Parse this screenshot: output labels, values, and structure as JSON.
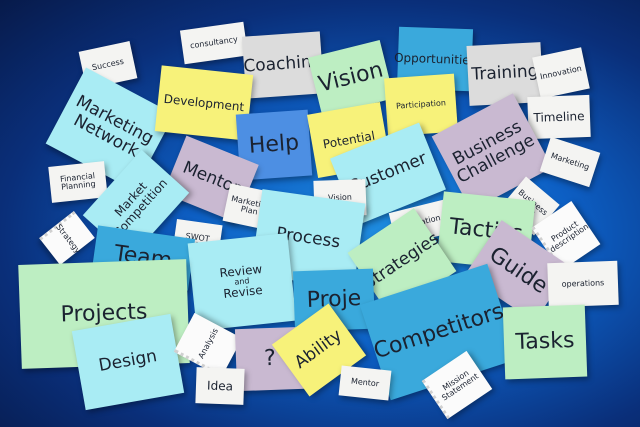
{
  "notes": {
    "success": "Success",
    "consultancy": "consultancy",
    "coaching": "Coaching",
    "vision_top": "Vision",
    "opportunities": "Opportunities",
    "training": "Training",
    "innovation": "Innovation",
    "marketing_network": "Marketing Network",
    "development": "Development",
    "participation": "Participation",
    "timeline": "Timeline",
    "help": "Help",
    "potential": "Potential",
    "business_challenge": "Business Challenge",
    "mentor_mid": "Mentor",
    "customer": "Customer",
    "marketing_right": "Marketing",
    "financial_planning": "Financial Planning",
    "market_competition": "Market Competition",
    "marketing_plan": "Marketing Plan",
    "vision_small": "Vision",
    "business_plan": "Business Plan",
    "strategy": "Strategy",
    "swot_analysis": "SWOT Analysis",
    "process": "Process",
    "motivation": "Motivation",
    "tactics": "Tactics",
    "product_description": "Product description",
    "team": "Team",
    "review": "Review",
    "and": "and",
    "revise": "Revise",
    "strategies": "Strategies",
    "guide": "Guide",
    "operations": "operations",
    "projects_big": "Projects",
    "projects_mid": "Proje",
    "competitors": "Competitors",
    "design": "Design",
    "analysis": "Analysis",
    "question": "?",
    "ability": "Ability",
    "tasks": "Tasks",
    "idea": "Idea",
    "mentor_bottom": "Mentor",
    "mission_statement": "Mission Statement"
  }
}
